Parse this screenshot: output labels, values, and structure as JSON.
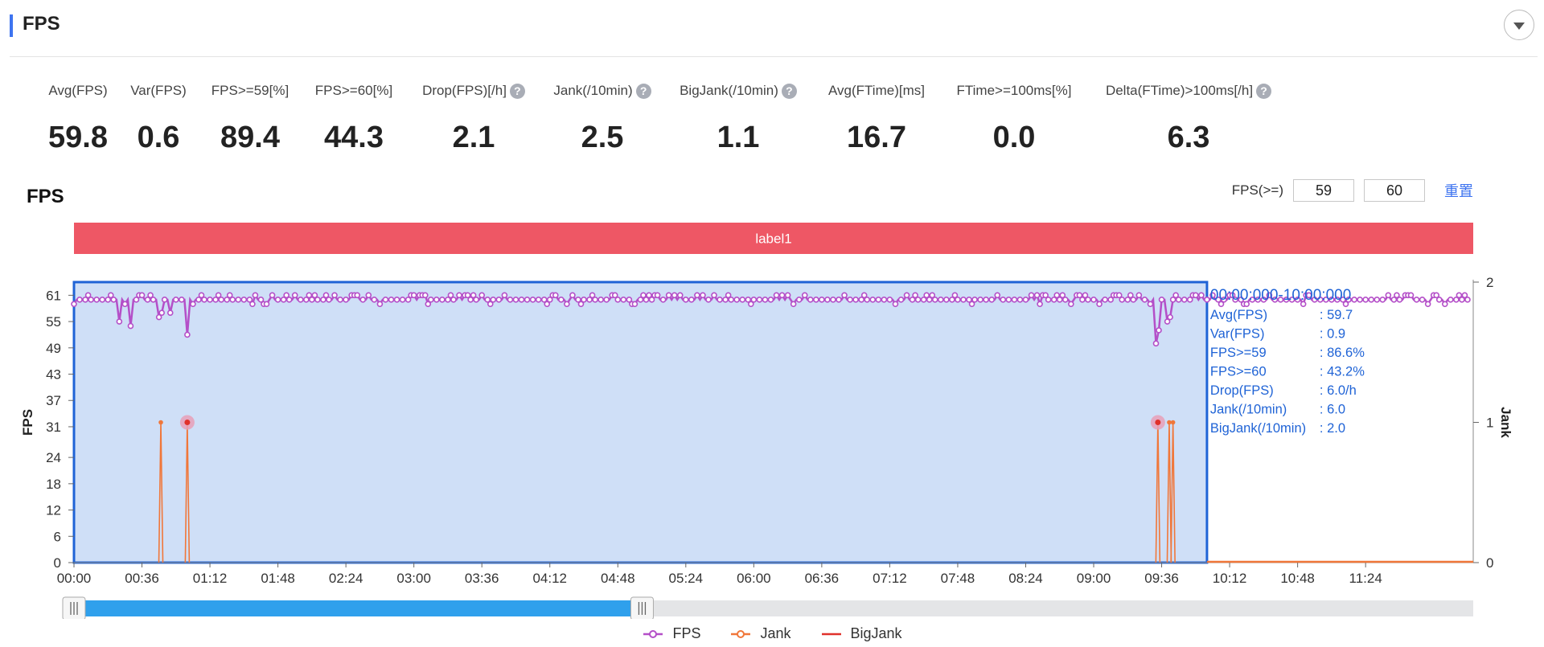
{
  "header": {
    "title": "FPS"
  },
  "metrics": [
    {
      "label": "Avg(FPS)",
      "value": "59.8",
      "help": false
    },
    {
      "label": "Var(FPS)",
      "value": "0.6",
      "help": false
    },
    {
      "label": "FPS>=59[%]",
      "value": "89.4",
      "help": false
    },
    {
      "label": "FPS>=60[%]",
      "value": "44.3",
      "help": false
    },
    {
      "label": "Drop(FPS)[/h]",
      "value": "2.1",
      "help": true
    },
    {
      "label": "Jank(/10min)",
      "value": "2.5",
      "help": true
    },
    {
      "label": "BigJank(/10min)",
      "value": "1.1",
      "help": true
    },
    {
      "label": "Avg(FTime)[ms]",
      "value": "16.7",
      "help": false
    },
    {
      "label": "FTime>=100ms[%]",
      "value": "0.0",
      "help": false
    },
    {
      "label": "Delta(FTime)>100ms[/h]",
      "value": "6.3",
      "help": true
    }
  ],
  "help_glyph": "?",
  "chart_section": {
    "title": "FPS",
    "threshold_label": "FPS(>=)",
    "threshold_low": "59",
    "threshold_high": "60",
    "reset_label": "重置"
  },
  "chart_data": {
    "type": "line",
    "label_band": "label1",
    "xlabel": "",
    "ylabel": "FPS",
    "y2label": "Jank",
    "x_unit": "minutes",
    "xlim": [
      0,
      741
    ],
    "ylim": [
      0,
      64
    ],
    "y2lim": [
      0,
      2
    ],
    "x_ticks": [
      "00:00",
      "00:36",
      "01:12",
      "01:48",
      "02:24",
      "03:00",
      "03:36",
      "04:12",
      "04:48",
      "05:24",
      "06:00",
      "06:36",
      "07:12",
      "07:48",
      "08:24",
      "09:00",
      "09:36",
      "10:12",
      "10:48",
      "11:24"
    ],
    "y_ticks": [
      0,
      6,
      12,
      18,
      24,
      31,
      37,
      43,
      49,
      55,
      61
    ],
    "y2_ticks": [
      0,
      1,
      2
    ],
    "series": [
      {
        "name": "FPS",
        "color": "#b44fc8",
        "baseline": 60,
        "dips": [
          [
            24,
            55
          ],
          [
            25,
            57
          ],
          [
            28,
            56
          ],
          [
            30,
            54
          ],
          [
            45,
            56
          ],
          [
            47,
            57
          ],
          [
            49,
            55
          ],
          [
            51,
            57
          ],
          [
            60,
            52
          ],
          [
            573,
            50
          ],
          [
            575,
            53
          ],
          [
            579,
            55
          ],
          [
            581,
            56
          ]
        ]
      },
      {
        "name": "Jank",
        "color": "#f0773a",
        "points": [
          [
            46,
            1
          ],
          [
            60,
            1
          ],
          [
            574,
            1
          ],
          [
            580,
            1
          ],
          [
            582,
            1
          ]
        ]
      },
      {
        "name": "BigJank",
        "color": "#e0312b",
        "points": [
          [
            60,
            1
          ],
          [
            574,
            1
          ]
        ]
      }
    ],
    "selection": {
      "range": "00:00:000-10:00:000",
      "stats": [
        {
          "label": "Avg(FPS)",
          "value": ": 59.7"
        },
        {
          "label": "Var(FPS)",
          "value": ": 0.9"
        },
        {
          "label": "FPS>=59",
          "value": ": 86.6%"
        },
        {
          "label": "FPS>=60",
          "value": ": 43.2%"
        },
        {
          "label": "Drop(FPS)",
          "value": ": 6.0/h"
        },
        {
          "label": "Jank(/10min)",
          "value": ": 6.0"
        },
        {
          "label": "BigJank(/10min)",
          "value": ": 2.0"
        }
      ]
    },
    "slider_range": [
      0,
      0.406
    ],
    "legend_position": "bottom-center",
    "colors": {
      "selection_fill": "#cfdff7",
      "selection_stroke": "#1f63d6",
      "label_band": "#ee5765",
      "slider_fill": "#2fa0ec",
      "slider_track": "#e4e5e7"
    }
  }
}
